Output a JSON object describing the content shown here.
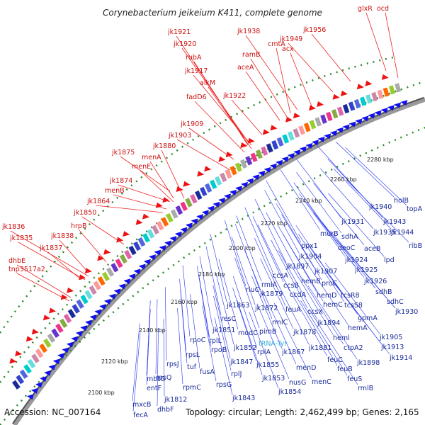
{
  "header": {
    "title": "Corynebacterium jeikeium K411, complete genome"
  },
  "footer": {
    "accession": "Accession: NC_007164",
    "summary": "Topology: circular; Length: 2,462,499 bp; Genes: 2,165"
  },
  "kbp_marks": [
    "2100 kbp",
    "2120 kbp",
    "2140 kbp",
    "2160 kbp",
    "2180 kbp",
    "2200 kbp",
    "2220 kbp",
    "2240 kbp",
    "2260 kbp",
    "2280 kbp"
  ],
  "labels_red": [
    "glxR",
    "ocd",
    "jk1956",
    "jk1938",
    "jk1949",
    "cmtA",
    "acx",
    "jk1921",
    "jk1920",
    "rubA",
    "ramB",
    "aceA",
    "jk1917",
    "alkM",
    "jk1922",
    "fadD6",
    "jk1909",
    "jk1903",
    "jk1880",
    "jk1875",
    "menA",
    "menE",
    "jk1874",
    "menB",
    "jk1864",
    "jk1850",
    "hrpB",
    "jk1836",
    "jk1835",
    "jk1838",
    "jk1837",
    "dhbE",
    "tnp3517a2"
  ],
  "labels_blue": [
    "holB",
    "topA",
    "jk1940",
    "jk1943",
    "jk1931",
    "jk1935",
    "jk1944",
    "murB",
    "sdhA",
    "ribB",
    "ppx1",
    "deoC",
    "aceB",
    "jk1904",
    "jk1924",
    "lpd",
    "jk1897",
    "jk1907",
    "jk1925",
    "ccsA",
    "hemB",
    "proC",
    "jk1926",
    "rluC",
    "rmlA",
    "ccsB",
    "jk1879",
    "ccdA",
    "hemD",
    "tcsR8",
    "sdhB",
    "jk1863",
    "jk1872",
    "feuA",
    "ccsX",
    "hemC",
    "tcsS8",
    "sdhC",
    "resC",
    "rmlC",
    "jk1894",
    "gpmA",
    "jk1930",
    "jk1851",
    "modC",
    "pimB",
    "jk1878",
    "hemA",
    "rpoC",
    "rplL",
    "jk1905",
    "rpoB",
    "jk1852",
    "rplA",
    "jk1867",
    "jk1881",
    "heml",
    "ctpA2",
    "jk1913",
    "rpsL",
    "jk1847",
    "jk1855",
    "feuC",
    "jk1914",
    "rpsJ",
    "tuf",
    "fusA",
    "menD",
    "feuB",
    "jk1898",
    "rpsQ",
    "rplJ",
    "jk1853",
    "nusG",
    "menC",
    "feuS",
    "mbtG",
    "rpmC",
    "rpsG",
    "jk1854",
    "rmlB",
    "entF",
    "jk1812",
    "jk1843",
    "mxcB",
    "dhbF",
    "fecA"
  ],
  "labels_cyan": [
    "tRNA-Tyr"
  ]
}
